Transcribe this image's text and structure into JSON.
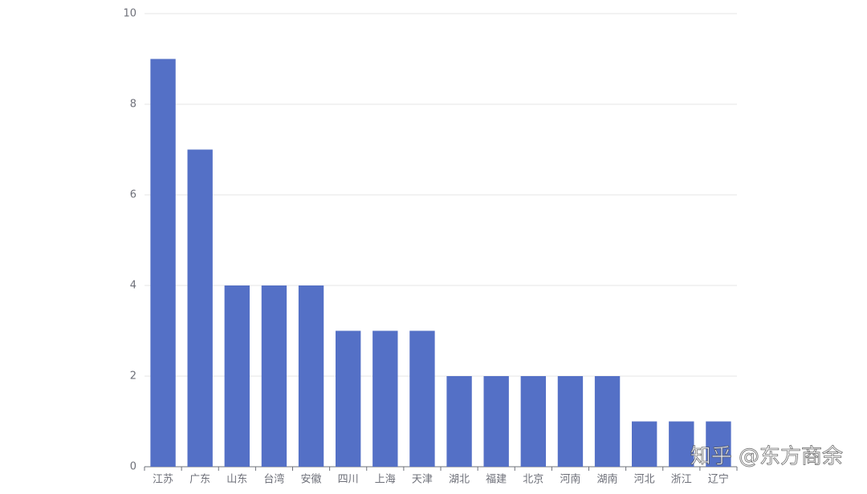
{
  "chart_data": {
    "type": "bar",
    "categories": [
      "江苏",
      "广东",
      "山东",
      "台湾",
      "安徽",
      "四川",
      "上海",
      "天津",
      "湖北",
      "福建",
      "北京",
      "河南",
      "湖南",
      "河北",
      "浙江",
      "辽宁"
    ],
    "values": [
      9,
      7,
      4,
      4,
      4,
      3,
      3,
      3,
      2,
      2,
      2,
      2,
      2,
      1,
      1,
      1
    ],
    "color": "#5470c6",
    "ylim": [
      0,
      10
    ],
    "yticks": [
      0,
      2,
      4,
      6,
      8,
      10
    ],
    "grid": true,
    "watermark": "知乎 @东方商余"
  }
}
